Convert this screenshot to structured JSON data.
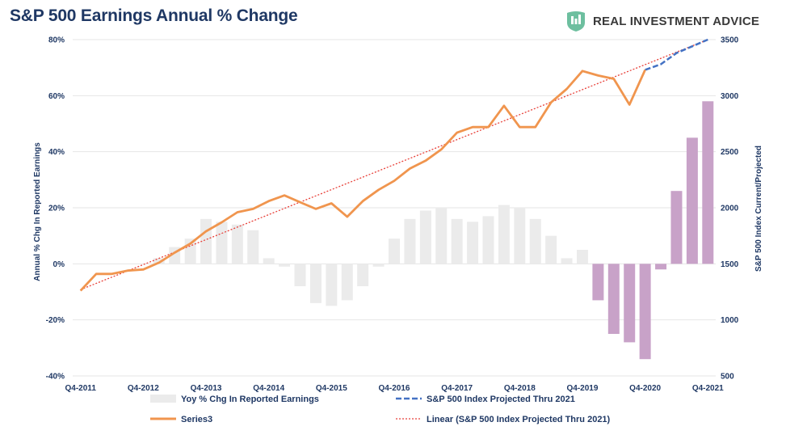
{
  "title": "S&P 500 Earnings Annual % Change",
  "brand": {
    "name": "REAL INVESTMENT ADVICE",
    "logo_icon": "ria-shield-icon",
    "logo_color": "#6dbf9f"
  },
  "chart_data": {
    "type": "bar+line",
    "title": "S&P 500 Earnings Annual % Change",
    "ylabel_left": "Annual % Chg In Reported Earnings",
    "ylabel_right": "S&P 500 Index Current/Projected",
    "ylim_left": [
      -40,
      80
    ],
    "ylim_right": [
      500,
      3500
    ],
    "yticks_left": [
      "80%",
      "60%",
      "40%",
      "20%",
      "0%",
      "-20%",
      "-40%"
    ],
    "yticks_right": [
      "3500",
      "3000",
      "2500",
      "2000",
      "1500",
      "1000",
      "500"
    ],
    "xtick_labels": [
      "Q4-2011",
      "Q4-2012",
      "Q4-2013",
      "Q4-2014",
      "Q4-2015",
      "Q4-2016",
      "Q4-2017",
      "Q4-2018",
      "Q4-2019",
      "Q4-2020",
      "Q4-2021"
    ],
    "categories": [
      "Q4-2011",
      "Q1-2012",
      "Q2-2012",
      "Q3-2012",
      "Q4-2012",
      "Q1-2013",
      "Q2-2013",
      "Q3-2013",
      "Q4-2013",
      "Q1-2014",
      "Q2-2014",
      "Q3-2014",
      "Q4-2014",
      "Q1-2015",
      "Q2-2015",
      "Q3-2015",
      "Q4-2015",
      "Q1-2016",
      "Q2-2016",
      "Q3-2016",
      "Q4-2016",
      "Q1-2017",
      "Q2-2017",
      "Q3-2017",
      "Q4-2017",
      "Q1-2018",
      "Q2-2018",
      "Q3-2018",
      "Q4-2018",
      "Q1-2019",
      "Q2-2019",
      "Q3-2019",
      "Q4-2019",
      "Q1-2020",
      "Q2-2020",
      "Q3-2020",
      "Q4-2020",
      "Q1-2021",
      "Q2-2021",
      "Q3-2021",
      "Q4-2021"
    ],
    "series": [
      {
        "name": "Yoy % Chg In Reported Earnings",
        "type": "bar",
        "color": "#ebebeb",
        "projected_color": "#c8a2c8",
        "values": [
          null,
          null,
          null,
          null,
          null,
          2,
          6,
          9,
          16,
          15,
          14,
          12,
          2,
          -1,
          -8,
          -14,
          -15,
          -13,
          -8,
          -1,
          9,
          16,
          19,
          20,
          16,
          15,
          17,
          21,
          20,
          16,
          10,
          2,
          5,
          -13,
          -25,
          -28,
          -34,
          -2,
          26,
          45,
          58
        ],
        "projected_from": "Q1-2020"
      },
      {
        "name": "Series3",
        "type": "line",
        "axis": "right",
        "color": "#f0954e",
        "values": [
          1260,
          1410,
          1410,
          1440,
          1450,
          1510,
          1600,
          1680,
          1790,
          1870,
          1960,
          1990,
          2060,
          2110,
          2050,
          1990,
          2040,
          1920,
          2060,
          2160,
          2240,
          2350,
          2420,
          2520,
          2670,
          2720,
          2720,
          2910,
          2720,
          2720,
          2940,
          3060,
          3220,
          3180,
          3150,
          2920,
          3230,
          null,
          null,
          null,
          null
        ]
      },
      {
        "name": "S&P 500 Index Projected Thru 2021",
        "type": "line",
        "axis": "right",
        "style": "dashed",
        "color": "#4472c4",
        "values": [
          null,
          null,
          null,
          null,
          null,
          null,
          null,
          null,
          null,
          null,
          null,
          null,
          null,
          null,
          null,
          null,
          null,
          null,
          null,
          null,
          null,
          null,
          null,
          null,
          null,
          null,
          null,
          null,
          null,
          null,
          null,
          null,
          null,
          null,
          null,
          null,
          3230,
          3280,
          3380,
          3440,
          3500
        ]
      },
      {
        "name": "Linear (S&P 500 Index Projected Thru 2021)",
        "type": "trendline",
        "axis": "right",
        "style": "dotted",
        "color": "#e8413a",
        "start": 1270,
        "end": 3500
      }
    ],
    "legend": [
      "Yoy % Chg In Reported Earnings",
      "S&P 500 Index Projected Thru 2021",
      "Series3",
      "Linear (S&P 500 Index Projected Thru 2021)"
    ],
    "legend_position": "bottom",
    "grid": "horizontal"
  }
}
